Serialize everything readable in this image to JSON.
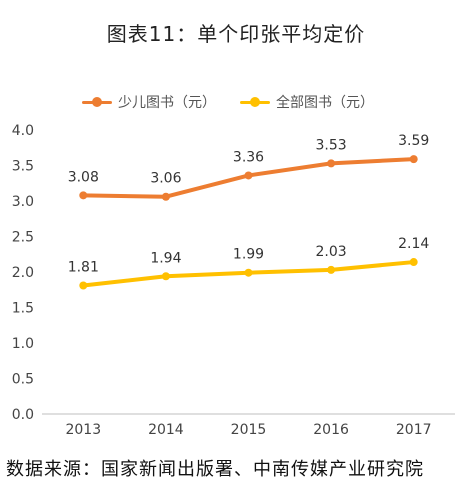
{
  "chart_data": {
    "type": "line",
    "title": "图表11：单个印张平均定价",
    "categories": [
      "2013",
      "2014",
      "2015",
      "2016",
      "2017"
    ],
    "series": [
      {
        "name": "少儿图书（元）",
        "color": "#ED7D31",
        "values": [
          3.08,
          3.06,
          3.36,
          3.53,
          3.59
        ],
        "labels": [
          "3.08",
          "3.06",
          "3.36",
          "3.53",
          "3.59"
        ]
      },
      {
        "name": "全部图书（元）",
        "color": "#FFC000",
        "values": [
          1.81,
          1.94,
          1.99,
          2.03,
          2.14
        ],
        "labels": [
          "1.81",
          "1.94",
          "1.99",
          "2.03",
          "2.14"
        ]
      }
    ],
    "ylim": [
      0,
      4.0
    ],
    "yticks": [
      "0.0",
      "0.5",
      "1.0",
      "1.5",
      "2.0",
      "2.5",
      "3.0",
      "3.5",
      "4.0"
    ],
    "grid": false,
    "legend_position": "top-left"
  },
  "source": "数据来源：国家新闻出版署、中南传媒产业研究院"
}
